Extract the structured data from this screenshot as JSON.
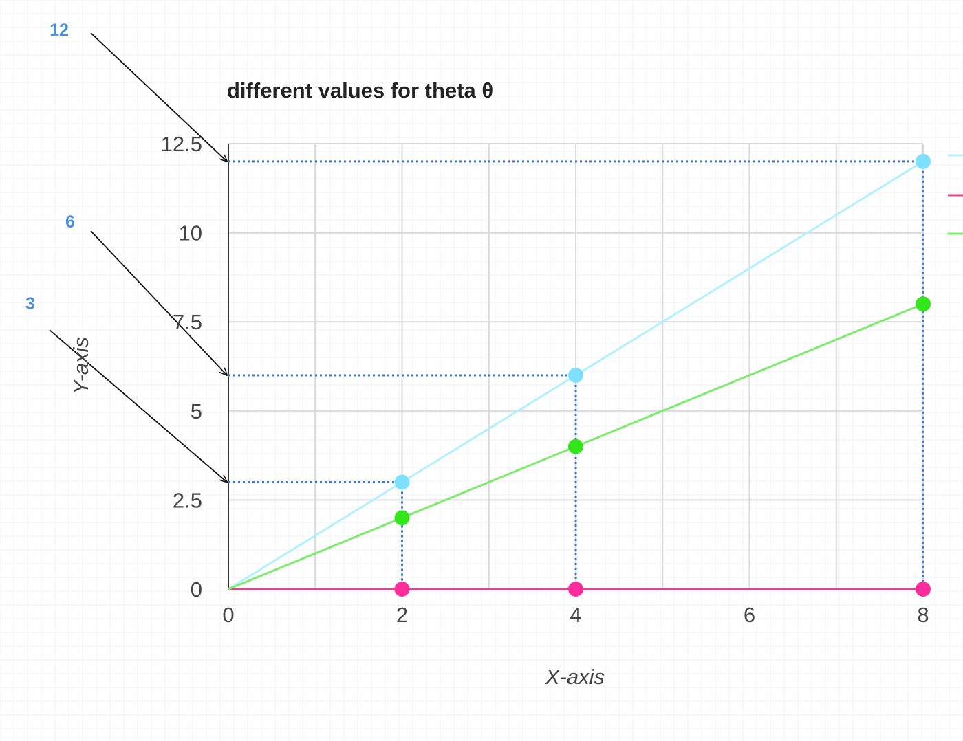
{
  "chart_data": {
    "type": "line",
    "title": "different values for theta θ",
    "xlabel": "X-axis",
    "ylabel": "Y-axis",
    "xlim": [
      0,
      8
    ],
    "ylim": [
      0,
      12.5
    ],
    "x_ticks": [
      "0",
      "2",
      "4",
      "6",
      "8"
    ],
    "y_ticks": [
      "0",
      "2.5",
      "5",
      "7.5",
      "10",
      "12.5"
    ],
    "grid": true,
    "legend_position": "right (partially cut off)",
    "series": [
      {
        "color": "#b3f0ff",
        "point_color": "#7ee0ff",
        "x": [
          0,
          2,
          4,
          8
        ],
        "y": [
          0,
          3,
          6,
          12
        ]
      },
      {
        "color": "#d94a8c",
        "point_color": "#ff2d9b",
        "x": [
          0,
          2,
          4,
          8
        ],
        "y": [
          0,
          0,
          0,
          0
        ]
      },
      {
        "color": "#7eea6e",
        "point_color": "#33e61a",
        "x": [
          0,
          2,
          4,
          8
        ],
        "y": [
          0,
          2,
          4,
          8
        ]
      }
    ],
    "annotations": [
      {
        "label": "12",
        "x": 8,
        "y": 12
      },
      {
        "label": "6",
        "x": 4,
        "y": 6
      },
      {
        "label": "3",
        "x": 2,
        "y": 3
      }
    ],
    "annotation_color": "#3a7bd5"
  }
}
